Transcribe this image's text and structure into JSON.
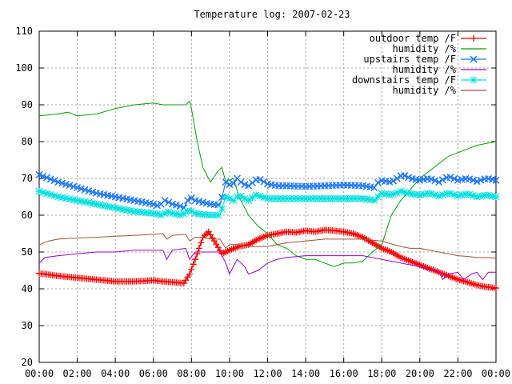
{
  "chart_data": {
    "type": "line",
    "title": "Temperature log: 2007-02-23",
    "xlabel": "",
    "ylabel": "",
    "x_ticks": [
      "00:00",
      "02:00",
      "04:00",
      "06:00",
      "08:00",
      "10:00",
      "12:00",
      "14:00",
      "16:00",
      "18:00",
      "20:00",
      "22:00",
      "00:00"
    ],
    "x_range_hours": [
      0,
      24
    ],
    "y_ticks": [
      20,
      30,
      40,
      50,
      60,
      70,
      80,
      90,
      100,
      110
    ],
    "ylim": [
      20,
      110
    ],
    "grid": true,
    "legend_position": "top-right",
    "series": [
      {
        "name": "outdoor temp /F",
        "color": "#ff0000",
        "marker": "plus",
        "points": [
          [
            0,
            44.2
          ],
          [
            1,
            43.5
          ],
          [
            2,
            43
          ],
          [
            3,
            42.5
          ],
          [
            4,
            42
          ],
          [
            5,
            42
          ],
          [
            6,
            42.3
          ],
          [
            6.5,
            42
          ],
          [
            7,
            41.8
          ],
          [
            7.6,
            41.5
          ],
          [
            7.9,
            44
          ],
          [
            8.2,
            48
          ],
          [
            8.6,
            54
          ],
          [
            8.9,
            55.5
          ],
          [
            9.2,
            53
          ],
          [
            9.6,
            49.5
          ],
          [
            10,
            50.5
          ],
          [
            10.5,
            51.5
          ],
          [
            11,
            52
          ],
          [
            11.5,
            53.5
          ],
          [
            12,
            54.5
          ],
          [
            12.5,
            55
          ],
          [
            13,
            55.5
          ],
          [
            13.5,
            55.3
          ],
          [
            14,
            55.8
          ],
          [
            14.5,
            55.5
          ],
          [
            15,
            56
          ],
          [
            15.5,
            55.8
          ],
          [
            16,
            55.5
          ],
          [
            16.5,
            55
          ],
          [
            17,
            54
          ],
          [
            17.5,
            52.5
          ],
          [
            18,
            51
          ],
          [
            18.5,
            50
          ],
          [
            19,
            48.5
          ],
          [
            19.5,
            47.5
          ],
          [
            20,
            46.5
          ],
          [
            20.5,
            45.5
          ],
          [
            21,
            44.5
          ],
          [
            21.5,
            43.5
          ],
          [
            22,
            42.5
          ],
          [
            22.5,
            41.8
          ],
          [
            23,
            41
          ],
          [
            23.5,
            40.5
          ],
          [
            24,
            40.2
          ]
        ]
      },
      {
        "name": "humidity /%",
        "color": "#00a000",
        "marker": "none",
        "points": [
          [
            0,
            87
          ],
          [
            1,
            87.5
          ],
          [
            1.5,
            88
          ],
          [
            2,
            87
          ],
          [
            3,
            87.5
          ],
          [
            4,
            89
          ],
          [
            5,
            90
          ],
          [
            6,
            90.5
          ],
          [
            6.5,
            90
          ],
          [
            7,
            90
          ],
          [
            7.7,
            90
          ],
          [
            7.9,
            91
          ],
          [
            8,
            89
          ],
          [
            8.3,
            80
          ],
          [
            8.6,
            73
          ],
          [
            9,
            69
          ],
          [
            9.4,
            72
          ],
          [
            9.6,
            73
          ],
          [
            9.8,
            69
          ],
          [
            10.2,
            70
          ],
          [
            10.5,
            65
          ],
          [
            11,
            60
          ],
          [
            11.5,
            57
          ],
          [
            12,
            55
          ],
          [
            12.5,
            52
          ],
          [
            13,
            51
          ],
          [
            13.5,
            49
          ],
          [
            14,
            48
          ],
          [
            14.5,
            48
          ],
          [
            15,
            47
          ],
          [
            15.5,
            46
          ],
          [
            16,
            47
          ],
          [
            16.5,
            47
          ],
          [
            17,
            47.5
          ],
          [
            17.5,
            50
          ],
          [
            18,
            52
          ],
          [
            18.5,
            60
          ],
          [
            19,
            64
          ],
          [
            19.5,
            67
          ],
          [
            20,
            70
          ],
          [
            20.5,
            72
          ],
          [
            21,
            74
          ],
          [
            21.5,
            76
          ],
          [
            22,
            77
          ],
          [
            22.5,
            78
          ],
          [
            23,
            79
          ],
          [
            23.5,
            79.5
          ],
          [
            24,
            80
          ]
        ]
      },
      {
        "name": "upstairs temp /F",
        "color": "#1e78ff",
        "marker": "cross",
        "points": [
          [
            0,
            71
          ],
          [
            1,
            69
          ],
          [
            2,
            67.5
          ],
          [
            3,
            66
          ],
          [
            4,
            65
          ],
          [
            5,
            64
          ],
          [
            6,
            63
          ],
          [
            6.3,
            62.5
          ],
          [
            6.6,
            64
          ],
          [
            7,
            63
          ],
          [
            7.4,
            62.5
          ],
          [
            7.6,
            62
          ],
          [
            7.9,
            65
          ],
          [
            8.2,
            64
          ],
          [
            8.6,
            63.5
          ],
          [
            9,
            63
          ],
          [
            9.5,
            62.8
          ],
          [
            9.8,
            69
          ],
          [
            10.1,
            68
          ],
          [
            10.4,
            70
          ],
          [
            10.7,
            68.5
          ],
          [
            11,
            68
          ],
          [
            11.5,
            70
          ],
          [
            12,
            68.5
          ],
          [
            12.5,
            68
          ],
          [
            13,
            68
          ],
          [
            14,
            67.8
          ],
          [
            15,
            68
          ],
          [
            16,
            68.2
          ],
          [
            17,
            68
          ],
          [
            17.6,
            67.5
          ],
          [
            17.9,
            69.5
          ],
          [
            18.5,
            69
          ],
          [
            19.1,
            71
          ],
          [
            19.5,
            70
          ],
          [
            20,
            69.5
          ],
          [
            20.5,
            70
          ],
          [
            21,
            69
          ],
          [
            21.5,
            70.5
          ],
          [
            22,
            69.5
          ],
          [
            22.5,
            70
          ],
          [
            23,
            69.2
          ],
          [
            23.5,
            70
          ],
          [
            24,
            69.5
          ]
        ]
      },
      {
        "name": "humidity /%",
        "color": "#9900cc",
        "marker": "none",
        "points": [
          [
            0,
            47
          ],
          [
            0.3,
            48.5
          ],
          [
            1,
            49
          ],
          [
            2,
            49.5
          ],
          [
            3,
            50
          ],
          [
            4,
            50
          ],
          [
            5,
            50.5
          ],
          [
            6,
            50.5
          ],
          [
            6.5,
            50.5
          ],
          [
            6.7,
            48
          ],
          [
            7,
            50.5
          ],
          [
            7.7,
            51
          ],
          [
            7.9,
            48
          ],
          [
            8.2,
            50
          ],
          [
            8.6,
            50
          ],
          [
            9,
            50
          ],
          [
            9.5,
            50
          ],
          [
            9.8,
            47
          ],
          [
            10,
            44
          ],
          [
            10.4,
            48
          ],
          [
            10.8,
            46
          ],
          [
            11,
            44
          ],
          [
            11.5,
            45
          ],
          [
            12,
            47
          ],
          [
            12.5,
            48
          ],
          [
            13,
            48.5
          ],
          [
            14,
            49
          ],
          [
            15,
            49
          ],
          [
            16,
            49
          ],
          [
            17,
            49
          ],
          [
            17.5,
            48.5
          ],
          [
            18,
            48
          ],
          [
            18.5,
            47.5
          ],
          [
            19,
            47
          ],
          [
            19.5,
            46.5
          ],
          [
            20,
            46
          ],
          [
            20.5,
            45
          ],
          [
            21,
            45
          ],
          [
            21.2,
            42.5
          ],
          [
            21.5,
            44
          ],
          [
            22,
            44.5
          ],
          [
            22.3,
            42.5
          ],
          [
            22.7,
            44
          ],
          [
            23,
            44.5
          ],
          [
            23.3,
            42.5
          ],
          [
            23.6,
            44.5
          ],
          [
            24,
            44.5
          ]
        ]
      },
      {
        "name": "downstairs temp /F",
        "color": "#00e0e0",
        "marker": "star",
        "points": [
          [
            0,
            66.5
          ],
          [
            1,
            65
          ],
          [
            2,
            64
          ],
          [
            3,
            63
          ],
          [
            4,
            62
          ],
          [
            5,
            61
          ],
          [
            6,
            60.5
          ],
          [
            6.5,
            60
          ],
          [
            6.7,
            61
          ],
          [
            7,
            60.5
          ],
          [
            7.5,
            60
          ],
          [
            7.9,
            61.5
          ],
          [
            8.2,
            60.5
          ],
          [
            8.6,
            60.2
          ],
          [
            9,
            60
          ],
          [
            9.5,
            60
          ],
          [
            9.8,
            65
          ],
          [
            10.2,
            64
          ],
          [
            10.5,
            65.5
          ],
          [
            10.8,
            64.5
          ],
          [
            11,
            64
          ],
          [
            11.4,
            65.5
          ],
          [
            12,
            64.5
          ],
          [
            13,
            64.5
          ],
          [
            14,
            64.5
          ],
          [
            15,
            64.5
          ],
          [
            16,
            64.5
          ],
          [
            17,
            64.5
          ],
          [
            17.7,
            64
          ],
          [
            17.9,
            66
          ],
          [
            18.5,
            65.5
          ],
          [
            19,
            66.5
          ],
          [
            19.5,
            65.8
          ],
          [
            20,
            65.5
          ],
          [
            20.5,
            66
          ],
          [
            21,
            65.2
          ],
          [
            21.5,
            66
          ],
          [
            22,
            65.3
          ],
          [
            22.5,
            65.8
          ],
          [
            23,
            65
          ],
          [
            23.5,
            65.5
          ],
          [
            24,
            65
          ]
        ]
      },
      {
        "name": "humidity /%",
        "color": "#a0522d",
        "marker": "none",
        "points": [
          [
            0,
            52
          ],
          [
            0.5,
            53
          ],
          [
            1,
            53.5
          ],
          [
            2,
            53.8
          ],
          [
            3,
            54
          ],
          [
            4,
            54.3
          ],
          [
            5,
            54.5
          ],
          [
            6,
            54.8
          ],
          [
            6.5,
            55
          ],
          [
            6.7,
            53.5
          ],
          [
            7,
            54.5
          ],
          [
            7.7,
            54.8
          ],
          [
            7.9,
            53
          ],
          [
            8.2,
            54
          ],
          [
            8.6,
            54
          ],
          [
            9,
            53.5
          ],
          [
            9.5,
            53.5
          ],
          [
            9.8,
            51
          ],
          [
            10,
            52
          ],
          [
            10.5,
            52
          ],
          [
            11,
            51.5
          ],
          [
            12,
            51.5
          ],
          [
            12.5,
            52
          ],
          [
            13,
            52.5
          ],
          [
            14,
            53
          ],
          [
            15,
            53.5
          ],
          [
            16,
            53.5
          ],
          [
            17,
            53.5
          ],
          [
            17.5,
            53.2
          ],
          [
            18,
            53
          ],
          [
            18.5,
            52.2
          ],
          [
            19,
            51.5
          ],
          [
            19.5,
            51
          ],
          [
            20,
            51
          ],
          [
            20.5,
            50.5
          ],
          [
            21,
            50
          ],
          [
            21.5,
            49.5
          ],
          [
            22,
            49
          ],
          [
            22.5,
            48.8
          ],
          [
            23,
            48.5
          ],
          [
            23.5,
            48.5
          ],
          [
            24,
            48.3
          ]
        ]
      }
    ]
  }
}
